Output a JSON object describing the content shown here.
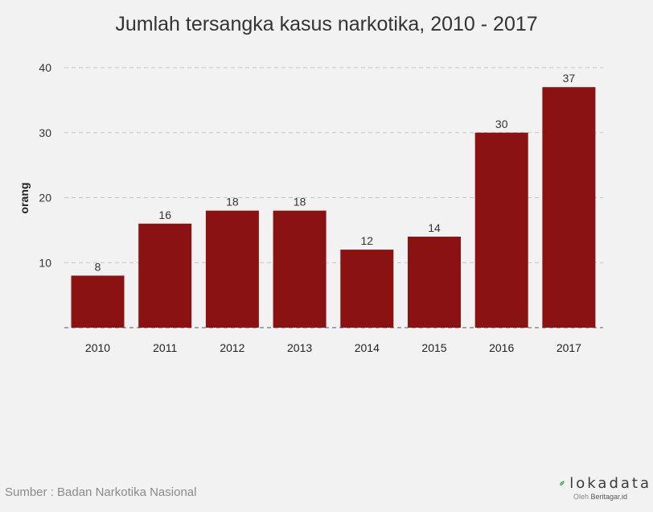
{
  "chart_data": {
    "type": "bar",
    "title": "Jumlah tersangka kasus narkotika, 2010 - 2017",
    "ylabel": "orang",
    "xlabel": "",
    "categories": [
      "2010",
      "2011",
      "2012",
      "2013",
      "2014",
      "2015",
      "2016",
      "2017"
    ],
    "values": [
      8,
      16,
      18,
      18,
      12,
      14,
      30,
      37
    ],
    "ylim": [
      0,
      40
    ],
    "yticks": [
      10,
      20,
      30,
      40
    ],
    "grid": true,
    "data_labels": true,
    "bar_color": "#8b1212"
  },
  "footer": {
    "source": "Sumber : Badan Narkotika Nasional",
    "brand_name": "lokadata",
    "brand_sub_prefix": "Oleh ",
    "brand_sub_site": "Beritagar.id",
    "brand_color": "#3fa34d"
  }
}
